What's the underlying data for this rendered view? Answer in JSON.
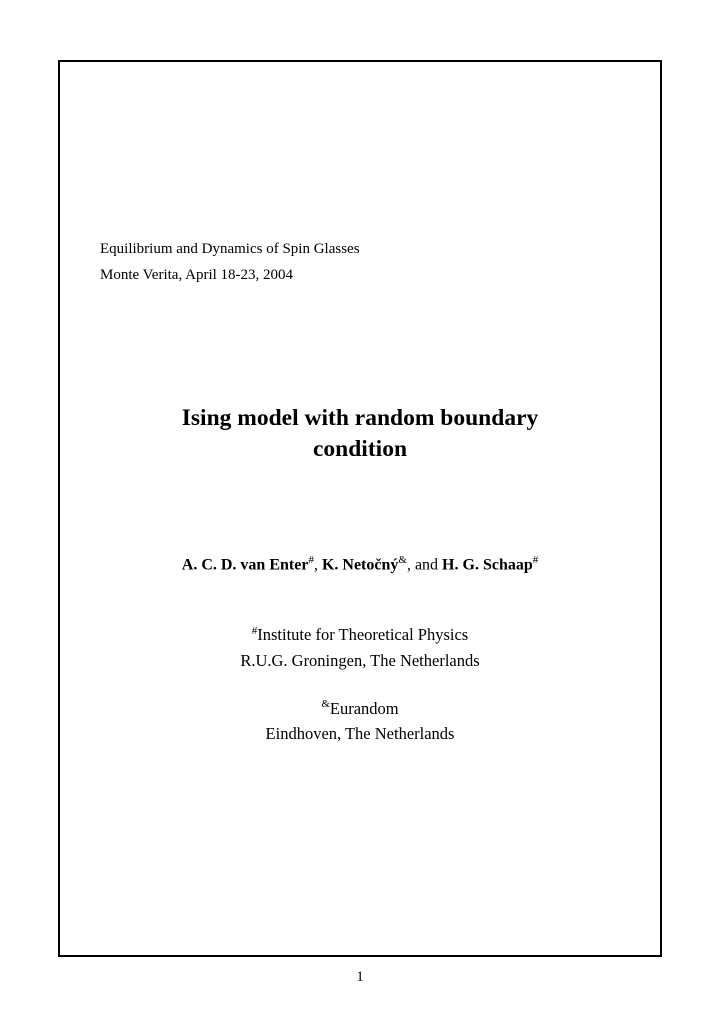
{
  "header": {
    "line1": "Equilibrium and Dynamics of Spin Glasses",
    "line2": "Monte Verita, April 18-23, 2004"
  },
  "title": {
    "line1": "Ising model with random boundary",
    "line2": "condition"
  },
  "authors": {
    "a1_name": "A. C. D.  van Enter",
    "a1_sup": "#",
    "sep1": ", ",
    "a2_name": "K. Netočný",
    "a2_sup": "&",
    "sep2": ", and ",
    "a3_name": "H. G. Schaap",
    "a3_sup": "#"
  },
  "affiliations": {
    "g1_sup": "#",
    "g1_line1": "Institute for Theoretical Physics",
    "g1_line2": "R.U.G. Groningen, The Netherlands",
    "g2_sup": "&",
    "g2_line1": "Eurandom",
    "g2_line2": "Eindhoven, The Netherlands"
  },
  "page_number": "1"
}
